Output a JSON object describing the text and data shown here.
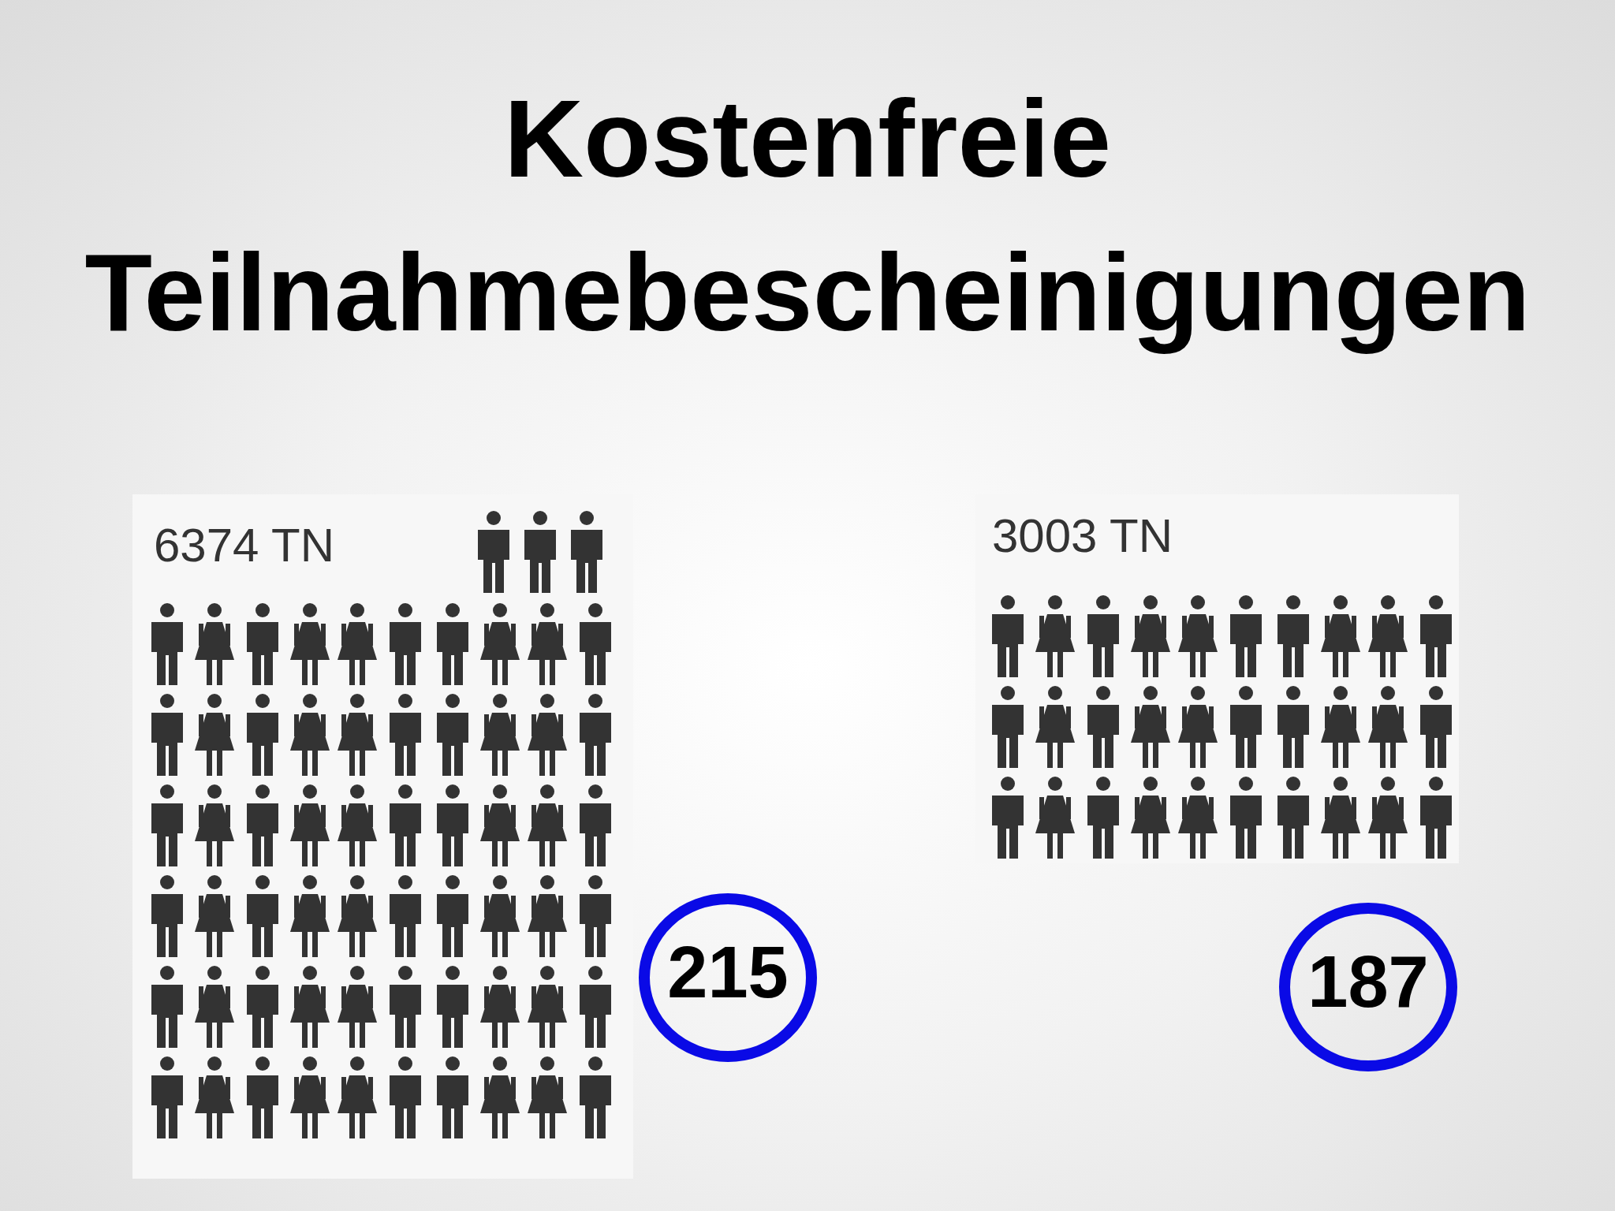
{
  "chart_data": {
    "type": "other",
    "title": "Kostenfreie\nTeilnahmebescheinigungen",
    "values": [
      6374,
      3003
    ],
    "value_labels": [
      "6374 TN",
      "3003 TN"
    ],
    "annotations": [
      "215",
      "187"
    ]
  }
}
